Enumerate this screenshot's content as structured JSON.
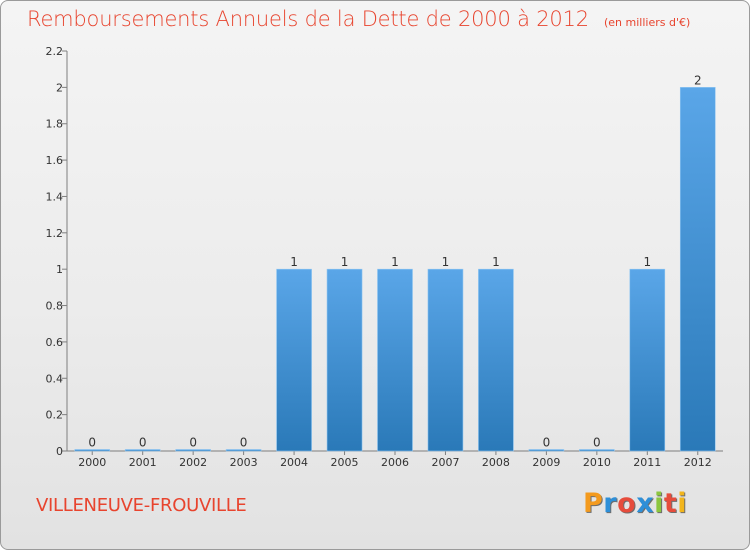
{
  "chart_data": {
    "type": "bar",
    "title": "Remboursements Annuels de la Dette de 2000 à 2012",
    "subtitle": "(en milliers d'€)",
    "categories": [
      "2000",
      "2001",
      "2002",
      "2003",
      "2004",
      "2005",
      "2006",
      "2007",
      "2008",
      "2009",
      "2010",
      "2011",
      "2012"
    ],
    "values": [
      0,
      0,
      0,
      0,
      1,
      1,
      1,
      1,
      1,
      0,
      0,
      1,
      2
    ],
    "data_labels": [
      "0",
      "0",
      "0",
      "0",
      "1",
      "1",
      "1",
      "1",
      "1",
      "0",
      "0",
      "1",
      "2"
    ],
    "ylim": [
      0,
      2.2
    ],
    "yticks": [
      0,
      0.2,
      0.4,
      0.6,
      0.8,
      1,
      1.2,
      1.4,
      1.6,
      1.8,
      2,
      2.2
    ],
    "ytick_labels": [
      "0",
      "0.2",
      "0.4",
      "0.6",
      "0.8",
      "1",
      "1.2",
      "1.4",
      "1.6",
      "1.8",
      "2",
      "2.2"
    ],
    "xlabel": "",
    "ylabel": "",
    "grid": false,
    "bar_color_top": "#5aa6e8",
    "bar_color_bottom": "#2a79b8"
  },
  "footer": {
    "commune": "VILLENEUVE-FROUVILLE",
    "logo_letters": [
      "P",
      "r",
      "o",
      "x",
      "i",
      "t",
      "i"
    ],
    "logo_colors": [
      "#f39a1e",
      "#2e8fd8",
      "#e64c3c",
      "#2e8fd8",
      "#8cc63f",
      "#e64c3c",
      "#f2b51c"
    ]
  }
}
